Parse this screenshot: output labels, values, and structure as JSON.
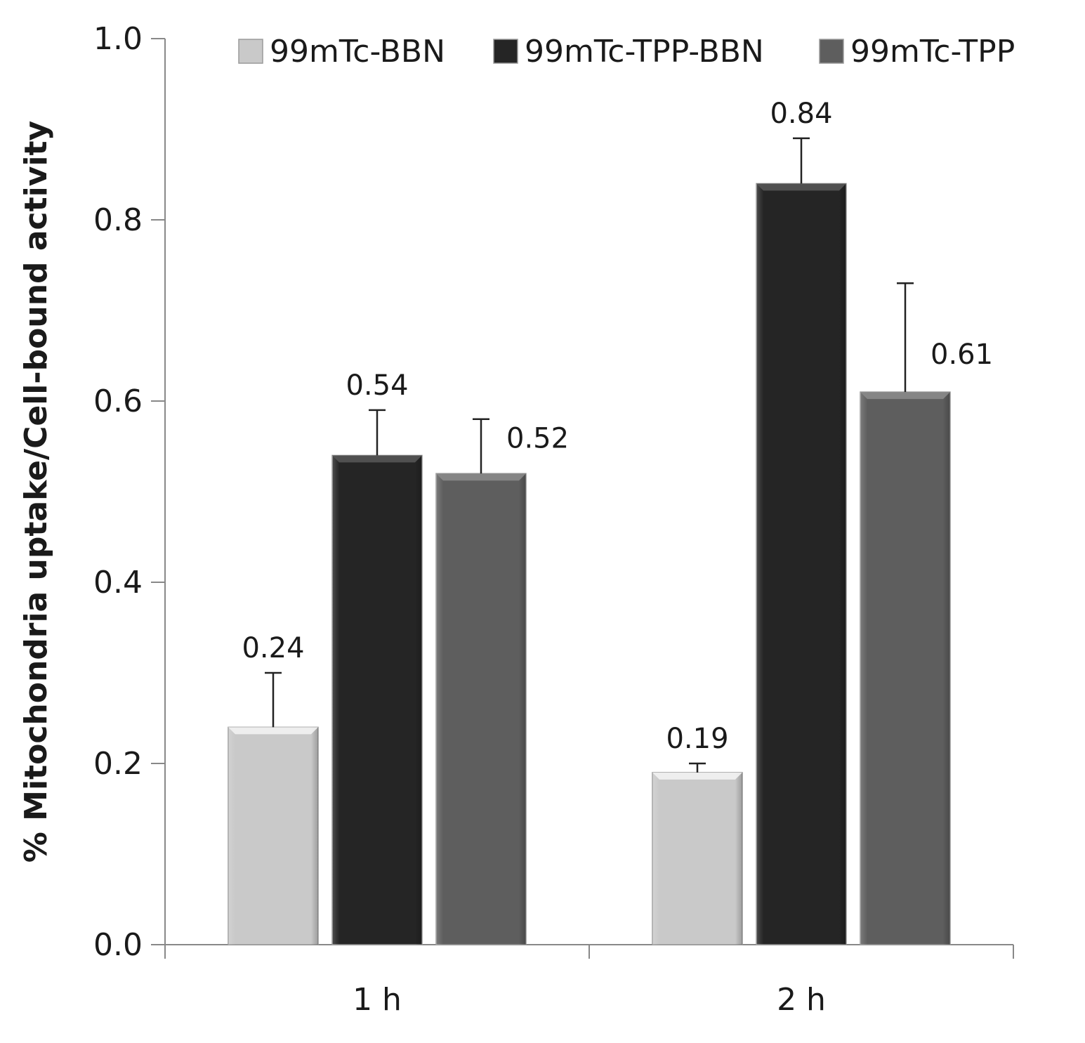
{
  "chart_data": {
    "type": "bar",
    "title": "",
    "xlabel": "",
    "ylabel": "% Mitochondria uptake/Cell-bound activity",
    "ylim": [
      0,
      1.0
    ],
    "yticks": [
      "0.0",
      "0.2",
      "0.4",
      "0.6",
      "0.8",
      "1.0"
    ],
    "categories": [
      "1 h",
      "2 h"
    ],
    "legend_position": "top",
    "grid": false,
    "series": [
      {
        "name": "99mTc-BBN",
        "values": [
          0.24,
          0.19
        ],
        "errors": [
          0.06,
          0.01
        ],
        "labels": [
          "0.24",
          "0.19"
        ],
        "color": "#c9c9c9"
      },
      {
        "name": "99mTc-TPP-BBN",
        "values": [
          0.54,
          0.84
        ],
        "errors": [
          0.05,
          0.05
        ],
        "labels": [
          "0.54",
          "0.84"
        ],
        "color": "#252525"
      },
      {
        "name": "99mTc-TPP",
        "values": [
          0.52,
          0.61
        ],
        "errors": [
          0.06,
          0.12
        ],
        "labels": [
          "0.52",
          "0.61"
        ],
        "color": "#5e5e5e"
      }
    ]
  }
}
